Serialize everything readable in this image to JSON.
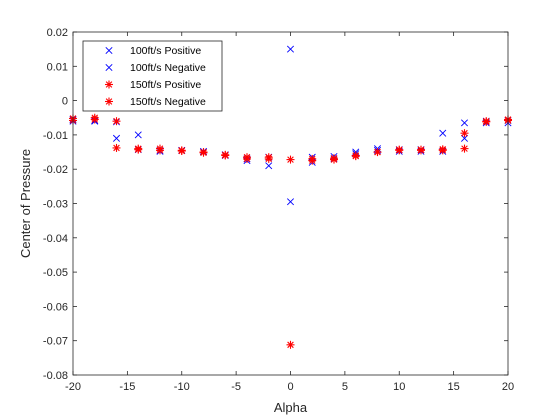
{
  "chart_data": {
    "type": "scatter",
    "xlabel": "Alpha",
    "ylabel": "Center of Pressure",
    "xlim": [
      -20,
      20
    ],
    "ylim": [
      -0.08,
      0.02
    ],
    "xticks": [
      -20,
      -15,
      -10,
      -5,
      0,
      5,
      10,
      15,
      20
    ],
    "xtick_labels": [
      "-20",
      "-15",
      "-10",
      "-5",
      "0",
      "5",
      "10",
      "15",
      "20"
    ],
    "yticks": [
      0.02,
      0.01,
      0,
      -0.01,
      -0.02,
      -0.03,
      -0.04,
      -0.05,
      -0.06,
      -0.07,
      -0.08
    ],
    "ytick_labels": [
      "0.02",
      "0.01",
      "0",
      "-0.01",
      "-0.02",
      "-0.03",
      "-0.04",
      "-0.05",
      "-0.06",
      "-0.07",
      "-0.08"
    ],
    "grid": false,
    "legend_position": "top-left",
    "series": [
      {
        "name": "100ft/s Positive",
        "marker": "x",
        "color": "#0000ff",
        "points": [
          [
            -20,
            -0.0055
          ],
          [
            -18,
            -0.0058
          ],
          [
            -16,
            -0.011
          ],
          [
            -14,
            -0.01
          ],
          [
            -12,
            -0.0148
          ],
          [
            -10,
            -0.0145
          ],
          [
            -8,
            -0.0148
          ],
          [
            -6,
            -0.016
          ],
          [
            -4,
            -0.0175
          ],
          [
            -2,
            -0.019
          ],
          [
            0,
            0.015
          ],
          [
            2,
            -0.018
          ],
          [
            4,
            -0.017
          ],
          [
            6,
            -0.0155
          ],
          [
            8,
            -0.014
          ],
          [
            10,
            -0.0148
          ],
          [
            12,
            -0.0148
          ],
          [
            14,
            -0.0095
          ],
          [
            16,
            -0.0065
          ],
          [
            18,
            -0.0065
          ],
          [
            20,
            -0.0065
          ]
        ]
      },
      {
        "name": "100ft/s Negative",
        "marker": "x",
        "color": "#0000ff",
        "points": [
          [
            -20,
            -0.006
          ],
          [
            -18,
            -0.006
          ],
          [
            -16,
            -0.0062
          ],
          [
            -14,
            -0.0143
          ],
          [
            -12,
            -0.0145
          ],
          [
            -10,
            -0.0145
          ],
          [
            -8,
            -0.015
          ],
          [
            -6,
            -0.0158
          ],
          [
            -4,
            -0.017
          ],
          [
            -2,
            -0.0165
          ],
          [
            0,
            -0.0295
          ],
          [
            2,
            -0.0165
          ],
          [
            4,
            -0.0163
          ],
          [
            6,
            -0.015
          ],
          [
            8,
            -0.0145
          ],
          [
            10,
            -0.0143
          ],
          [
            12,
            -0.0143
          ],
          [
            14,
            -0.0148
          ],
          [
            16,
            -0.011
          ],
          [
            18,
            -0.006
          ],
          [
            20,
            -0.0058
          ]
        ]
      },
      {
        "name": "150ft/s Positive",
        "marker": "*",
        "color": "#ff0000",
        "points": [
          [
            -20,
            -0.0052
          ],
          [
            -18,
            -0.005
          ],
          [
            -16,
            -0.006
          ],
          [
            -14,
            -0.014
          ],
          [
            -12,
            -0.014
          ],
          [
            -10,
            -0.0145
          ],
          [
            -8,
            -0.015
          ],
          [
            -6,
            -0.0158
          ],
          [
            -4,
            -0.0165
          ],
          [
            -2,
            -0.0165
          ],
          [
            0,
            -0.0712
          ],
          [
            2,
            -0.017
          ],
          [
            4,
            -0.0168
          ],
          [
            6,
            -0.016
          ],
          [
            8,
            -0.015
          ],
          [
            10,
            -0.0145
          ],
          [
            12,
            -0.0145
          ],
          [
            14,
            -0.0142
          ],
          [
            16,
            -0.0095
          ],
          [
            18,
            -0.006
          ],
          [
            20,
            -0.0055
          ]
        ]
      },
      {
        "name": "150ft/s Negative",
        "marker": "*",
        "color": "#ff0000",
        "points": [
          [
            -20,
            -0.0058
          ],
          [
            -18,
            -0.0055
          ],
          [
            -16,
            -0.0138
          ],
          [
            -14,
            -0.0143
          ],
          [
            -12,
            -0.0145
          ],
          [
            -10,
            -0.0147
          ],
          [
            -8,
            -0.0152
          ],
          [
            -6,
            -0.016
          ],
          [
            -4,
            -0.017
          ],
          [
            -2,
            -0.017
          ],
          [
            0,
            -0.0172
          ],
          [
            2,
            -0.0175
          ],
          [
            4,
            -0.0172
          ],
          [
            6,
            -0.0162
          ],
          [
            8,
            -0.015
          ],
          [
            10,
            -0.0143
          ],
          [
            12,
            -0.0143
          ],
          [
            14,
            -0.0145
          ],
          [
            16,
            -0.014
          ],
          [
            18,
            -0.0062
          ],
          [
            20,
            -0.0058
          ]
        ]
      }
    ]
  }
}
